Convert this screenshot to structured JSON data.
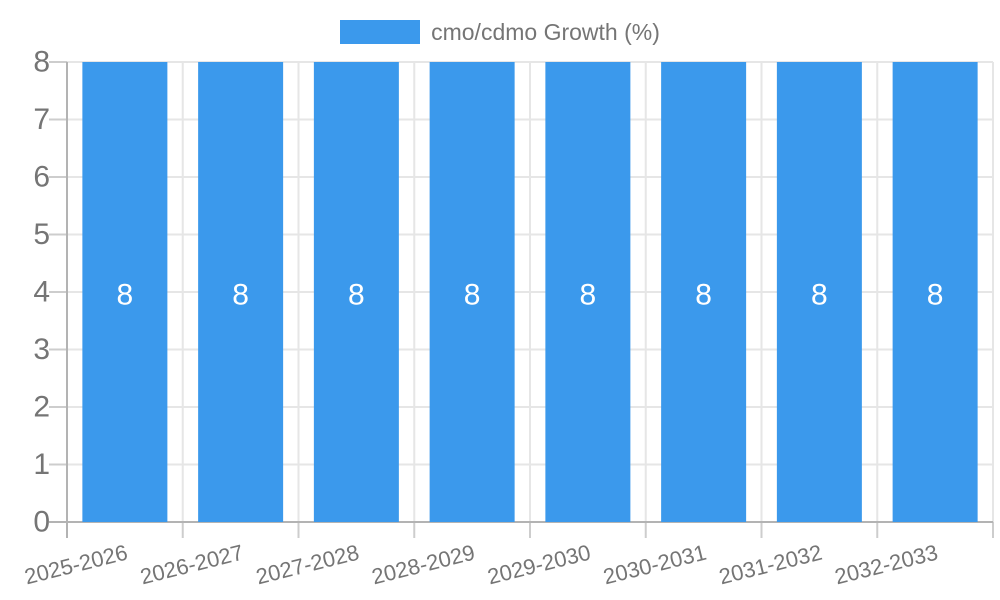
{
  "legend": {
    "items": [
      {
        "label": "cmo/cdmo Growth (%)",
        "color": "#3B99EC"
      }
    ]
  },
  "chart_data": {
    "type": "bar",
    "categories": [
      "2025-2026",
      "2026-2027",
      "2027-2028",
      "2028-2029",
      "2029-2030",
      "2030-2031",
      "2031-2032",
      "2032-2033"
    ],
    "series": [
      {
        "name": "cmo/cdmo Growth (%)",
        "color": "#3B99EC",
        "values": [
          8,
          8,
          8,
          8,
          8,
          8,
          8,
          8
        ]
      }
    ],
    "bar_value_labels": [
      "8",
      "8",
      "8",
      "8",
      "8",
      "8",
      "8",
      "8"
    ],
    "title": "",
    "xlabel": "",
    "ylabel": "",
    "ylim": [
      0,
      8
    ],
    "yticks": [
      0,
      1,
      2,
      3,
      4,
      5,
      6,
      7,
      8
    ],
    "grid": true,
    "legend_position": "top",
    "colors": {
      "bar": "#3B99EC",
      "axis_line": "#b3b3b3",
      "grid_line": "#e6e6e6",
      "tick_line": "#cdcdcd",
      "axis_label": "#757575",
      "bar_label": "#ffffff"
    }
  }
}
